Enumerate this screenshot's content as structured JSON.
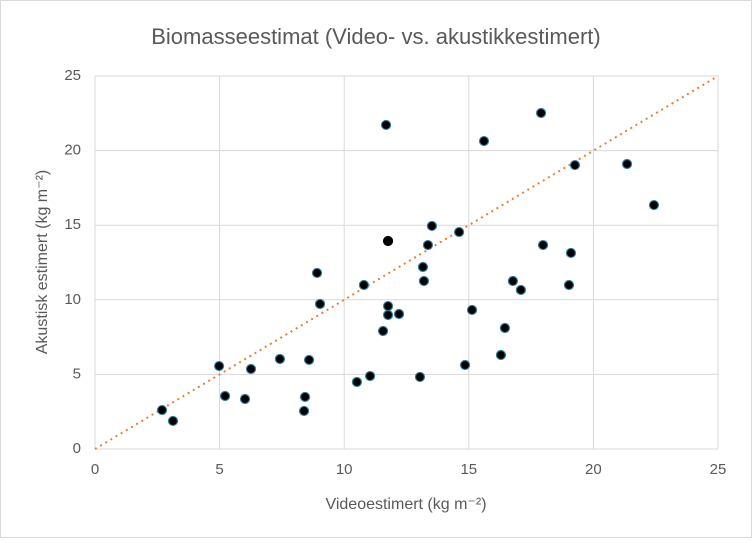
{
  "chart_data": {
    "type": "scatter",
    "title": "Biomasseestimat (Video- vs. akustikkestimert)",
    "x_label": "Videoestimert (kg m⁻²)",
    "y_label": "Akustisk estimert (kg m⁻²)",
    "xlim": [
      0,
      25
    ],
    "ylim": [
      0,
      25
    ],
    "xticks": [
      0,
      5,
      10,
      15,
      20,
      25
    ],
    "yticks": [
      0,
      5,
      10,
      15,
      20,
      25
    ],
    "grid": true,
    "series": [
      {
        "color": "#000000",
        "edge_color": "#2e7d9a",
        "x": [
          2.69,
          3.13,
          4.98,
          5.22,
          6.02,
          6.26,
          7.42,
          8.43,
          8.39,
          8.59,
          8.91,
          9.03,
          10.51,
          11.04,
          10.79,
          11.56,
          11.76,
          11.76,
          12.2,
          11.68,
          13.04,
          13.16,
          13.2,
          13.36,
          13.52,
          14.61,
          14.85,
          15.13,
          15.61,
          16.29,
          16.45,
          16.77,
          17.09,
          17.9,
          17.98,
          19.1,
          19.02,
          19.26,
          21.35,
          22.43
        ],
        "values": [
          2.61,
          1.88,
          5.56,
          3.55,
          3.35,
          5.36,
          6.03,
          3.49,
          2.55,
          5.97,
          11.8,
          9.72,
          4.49,
          4.89,
          10.99,
          7.91,
          9.58,
          8.98,
          9.05,
          21.72,
          4.83,
          12.2,
          11.26,
          13.67,
          14.95,
          14.54,
          5.63,
          9.32,
          20.64,
          6.3,
          8.11,
          11.26,
          10.66,
          22.52,
          13.67,
          13.14,
          10.99,
          19.03,
          19.1,
          16.35
        ]
      },
      {
        "color": "#000000",
        "edge_color": "#000000",
        "x": [
          11.76
        ],
        "values": [
          13.94
        ]
      }
    ],
    "reference_line": {
      "color": "#ed7d31",
      "x": [
        0,
        25
      ],
      "values": [
        0,
        25
      ]
    }
  }
}
